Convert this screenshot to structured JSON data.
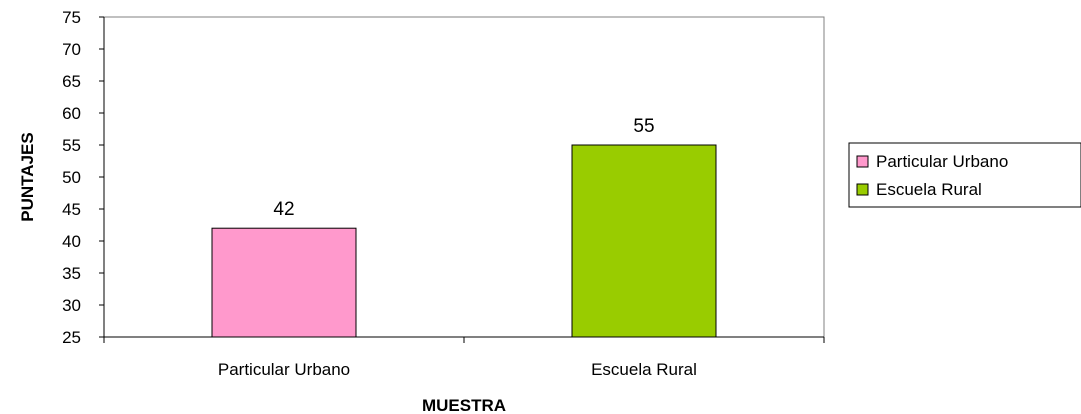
{
  "chart_data": {
    "type": "bar",
    "categories": [
      "Particular Urbano",
      "Escuela Rural"
    ],
    "values": [
      42,
      55
    ],
    "colors": [
      "#ff99cc",
      "#99cc00"
    ],
    "data_labels": [
      "42",
      "55"
    ],
    "title": "",
    "xlabel": "MUESTRA",
    "ylabel": "PUNTAJES",
    "ylim": [
      25,
      75
    ],
    "yticks": [
      "25",
      "30",
      "35",
      "40",
      "45",
      "50",
      "55",
      "60",
      "65",
      "70",
      "75"
    ],
    "grid": false,
    "legend": {
      "placement": "right",
      "entries": [
        {
          "label": "Particular Urbano",
          "color": "#ff99cc"
        },
        {
          "label": "Escuela Rural",
          "color": "#99cc00"
        }
      ]
    }
  }
}
